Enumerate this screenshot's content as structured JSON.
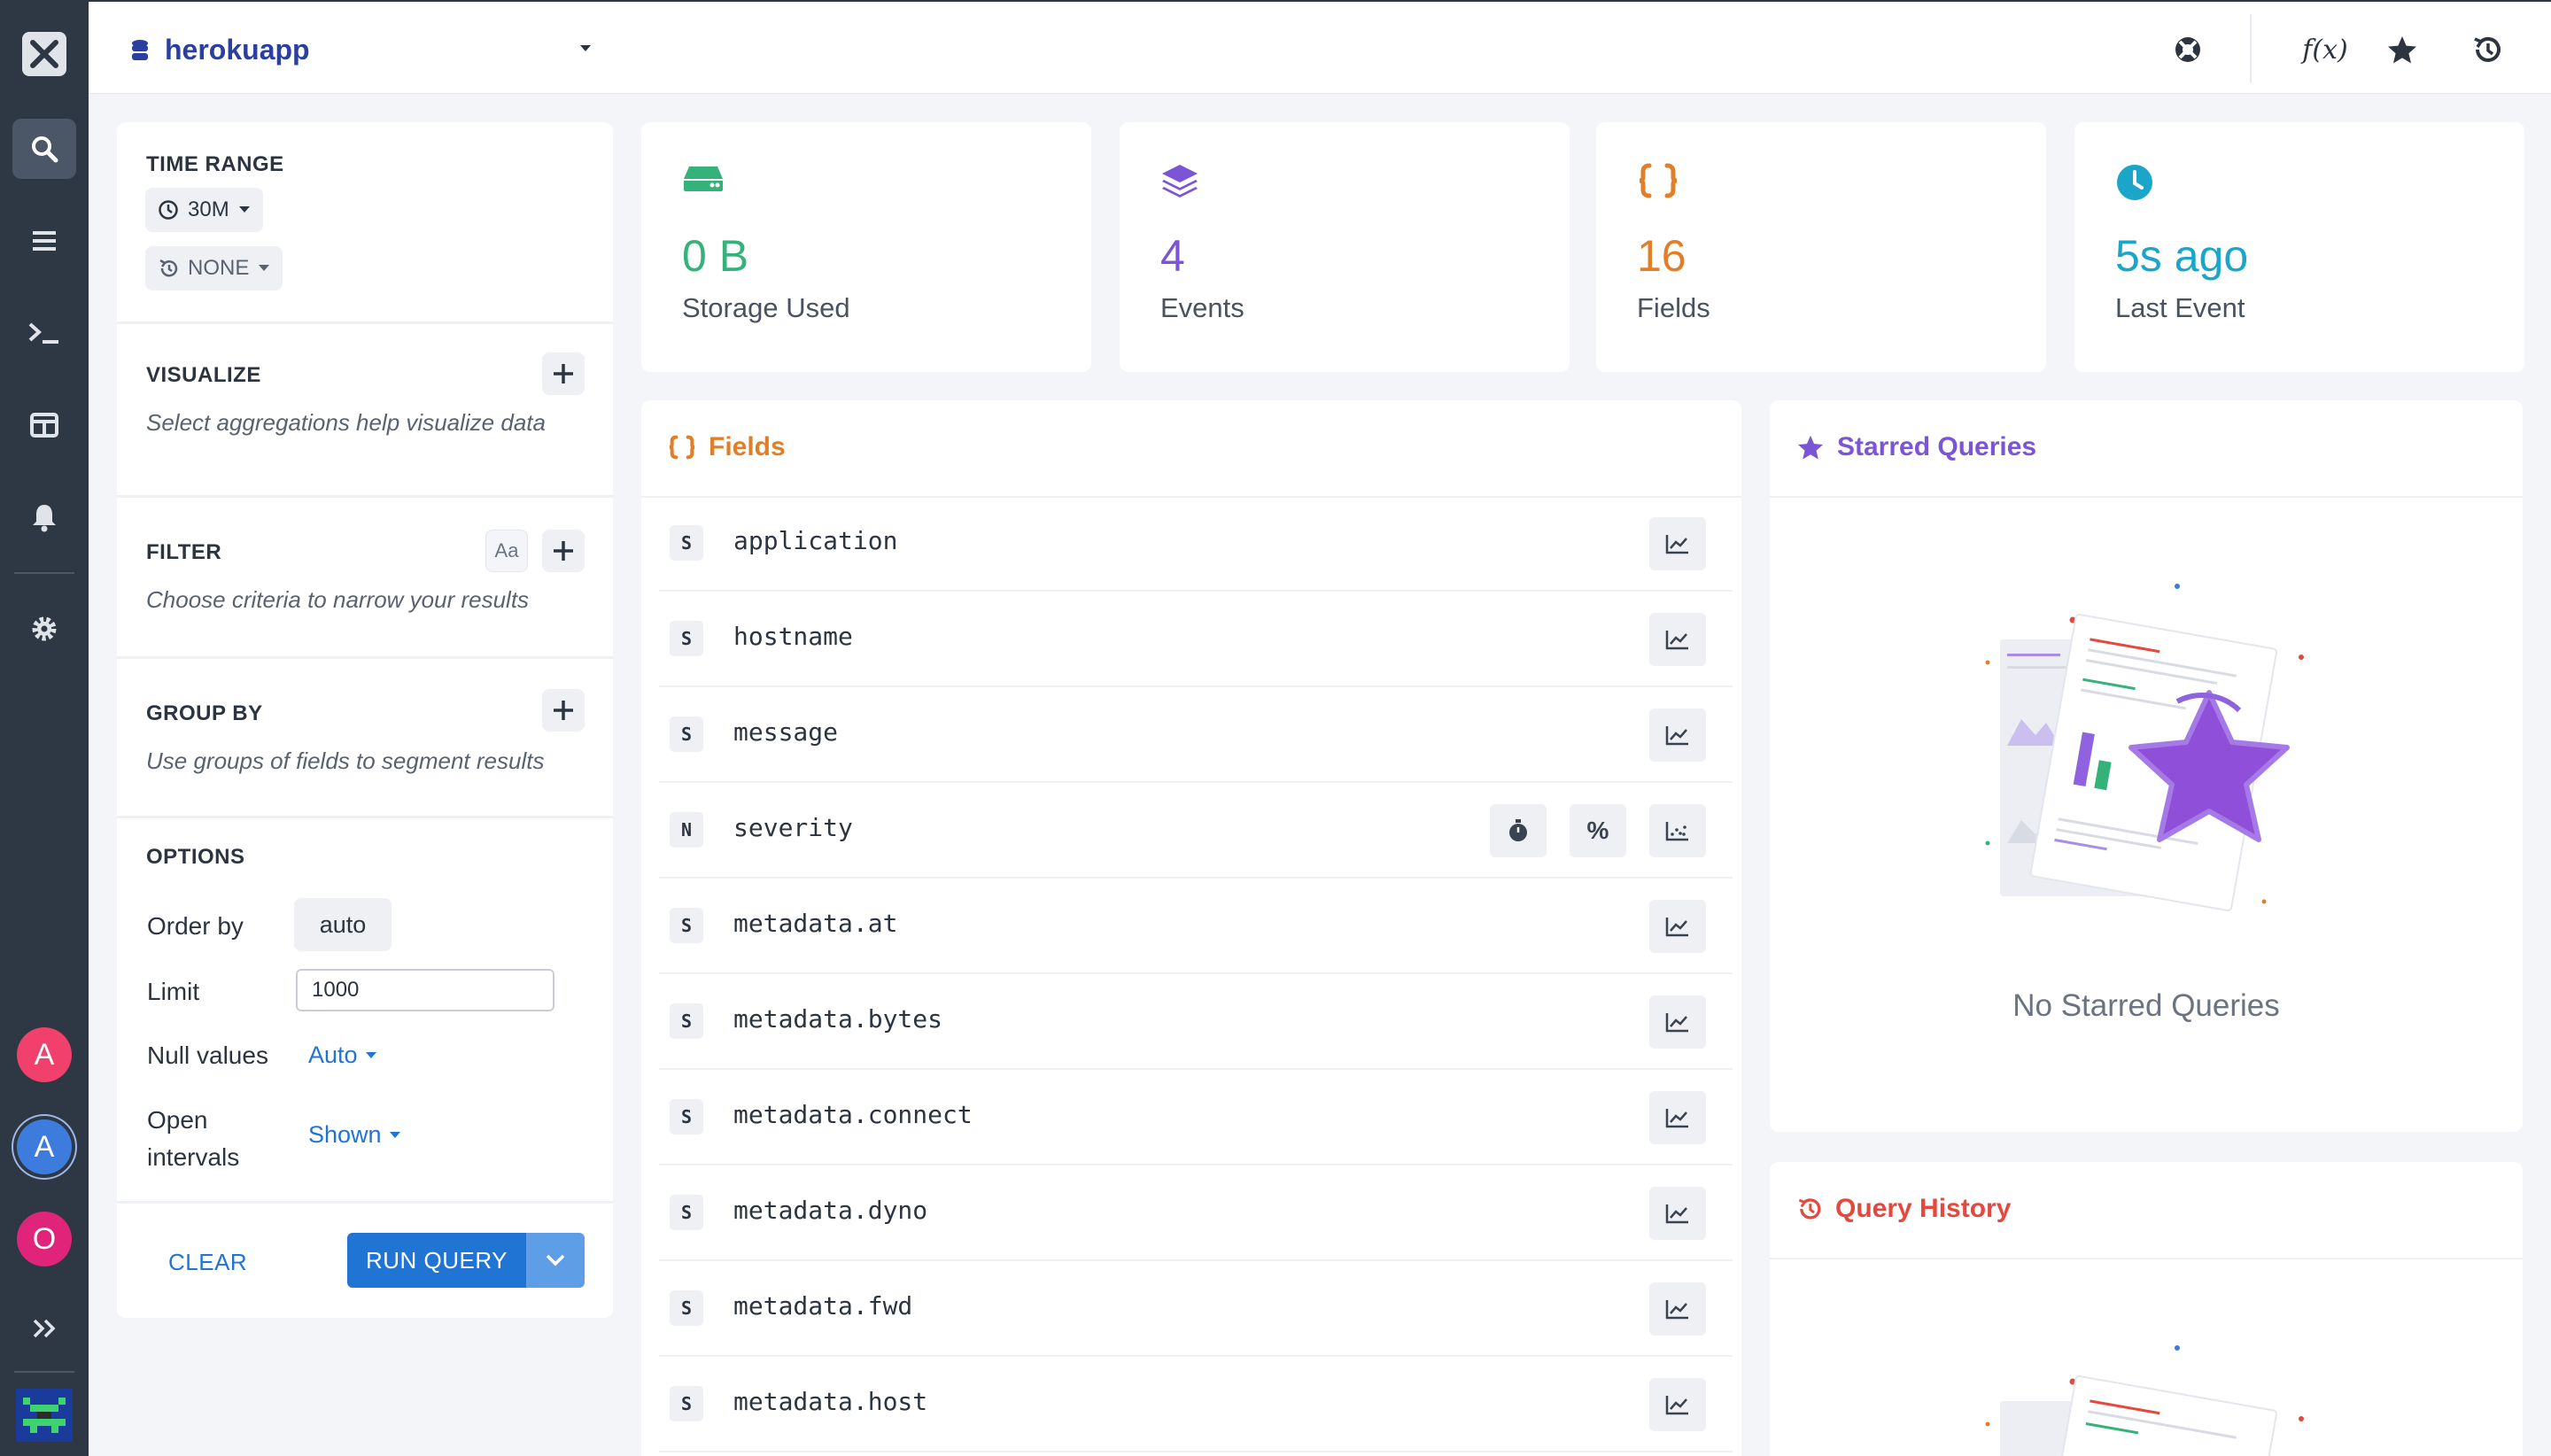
{
  "header": {
    "stream_name": "herokuapp",
    "icons": [
      "help-icon",
      "function-icon",
      "star-icon",
      "history-icon"
    ],
    "fx_label": "f(x)"
  },
  "rail": {
    "icons": [
      "search-icon",
      "list-icon",
      "terminal-icon",
      "dashboard-icon",
      "bell-icon",
      "gear-icon",
      "expand-icon"
    ],
    "avatars": [
      {
        "letter": "A",
        "color": "#f0406b"
      },
      {
        "letter": "A",
        "color": "#3d7bdd"
      },
      {
        "letter": "O",
        "color": "#e0247a"
      }
    ]
  },
  "query": {
    "time_range": {
      "title": "TIME RANGE",
      "value": "30M",
      "compare": "NONE"
    },
    "visualize": {
      "title": "VISUALIZE",
      "hint": "Select aggregations help visualize data"
    },
    "filter": {
      "title": "FILTER",
      "case_label": "Aa",
      "hint": "Choose criteria to narrow your results"
    },
    "group_by": {
      "title": "GROUP BY",
      "hint": "Use groups of fields to segment results"
    },
    "options": {
      "title": "OPTIONS",
      "order_by_label": "Order by",
      "order_by_value": "auto",
      "limit_label": "Limit",
      "limit_value": "1000",
      "null_values_label": "Null values",
      "null_values_value": "Auto",
      "open_intervals_label_1": "Open",
      "open_intervals_label_2": "intervals",
      "open_intervals_value": "Shown"
    },
    "clear_label": "CLEAR",
    "run_label": "RUN QUERY"
  },
  "stats": [
    {
      "value": "0 B",
      "label": "Storage Used",
      "color": "#35b27a",
      "icon": "storage-icon"
    },
    {
      "value": "4",
      "label": "Events",
      "color": "#7b55d6",
      "icon": "layers-icon"
    },
    {
      "value": "16",
      "label": "Fields",
      "color": "#e07f27",
      "icon": "braces-icon"
    },
    {
      "value": "5s ago",
      "label": "Last Event",
      "color": "#1ba6c9",
      "icon": "clock-icon"
    }
  ],
  "fields_panel": {
    "title": "Fields",
    "rows": [
      {
        "type": "S",
        "name": "application"
      },
      {
        "type": "S",
        "name": "hostname"
      },
      {
        "type": "S",
        "name": "message"
      },
      {
        "type": "N",
        "name": "severity"
      },
      {
        "type": "S",
        "name": "metadata.at"
      },
      {
        "type": "S",
        "name": "metadata.bytes"
      },
      {
        "type": "S",
        "name": "metadata.connect"
      },
      {
        "type": "S",
        "name": "metadata.dyno"
      },
      {
        "type": "S",
        "name": "metadata.fwd"
      },
      {
        "type": "S",
        "name": "metadata.host"
      }
    ],
    "percent_label": "%"
  },
  "starred": {
    "title": "Starred Queries",
    "empty_text": "No Starred Queries"
  },
  "history": {
    "title": "Query History"
  },
  "colors": {
    "accent": "#1f74d4",
    "rail": "#2e3744",
    "orange": "#e07f27",
    "purple": "#7b55d6",
    "red": "#e5483f"
  }
}
